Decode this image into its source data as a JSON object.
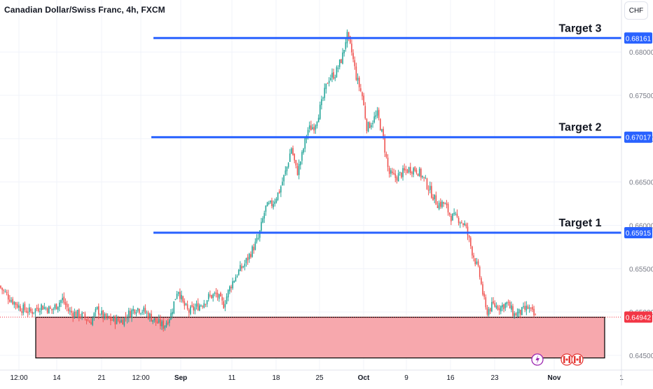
{
  "header": {
    "title": "Canadian Dollar/Swiss Franc, 4h, FXCM",
    "currency_button": "CHF"
  },
  "colors": {
    "up": "#26a69a",
    "down": "#ef5350",
    "level_line": "#2962ff",
    "zone_fill": "#f7a8ad",
    "zone_border": "#000000",
    "last_price_line": "#f23645",
    "grid": "#f0f3fa",
    "axis_text": "#787b86"
  },
  "chart_data": {
    "type": "candlestick",
    "title": "Canadian Dollar/Swiss Franc, 4h, FXCM",
    "x_tick_labels": [
      "12:00",
      "14",
      "21",
      "12:00",
      "Sep",
      "11",
      "18",
      "25",
      "Oct",
      "9",
      "16",
      "23",
      "Nov",
      "1"
    ],
    "y_tick_labels": [
      "0.68000",
      "0.67500",
      "0.67000",
      "0.66500",
      "0.66000",
      "0.65500",
      "0.65000",
      "0.64500"
    ],
    "ylim": [
      0.6433,
      0.686
    ],
    "price_levels": [
      {
        "label": "Target 3",
        "value": 0.68161
      },
      {
        "label": "Target 2",
        "value": 0.67017
      },
      {
        "label": "Target 1",
        "value": 0.65915
      }
    ],
    "support_zone": {
      "low": 0.6447,
      "high": 0.6494
    },
    "last_price": 0.64942,
    "marker_icons": [
      "lightning-icon",
      "canada-flag-icon",
      "canada-flag-icon"
    ],
    "path": [
      [
        0,
        0.653
      ],
      [
        15,
        0.6516
      ],
      [
        30,
        0.6505
      ],
      [
        45,
        0.65
      ],
      [
        60,
        0.6507
      ],
      [
        75,
        0.6502
      ],
      [
        90,
        0.6515
      ],
      [
        100,
        0.65
      ],
      [
        110,
        0.6498
      ],
      [
        120,
        0.6495
      ],
      [
        130,
        0.6488
      ],
      [
        140,
        0.6503
      ],
      [
        150,
        0.6493
      ],
      [
        160,
        0.6491
      ],
      [
        175,
        0.649
      ],
      [
        185,
        0.6498
      ],
      [
        195,
        0.6505
      ],
      [
        205,
        0.6502
      ],
      [
        215,
        0.6495
      ],
      [
        225,
        0.6488
      ],
      [
        235,
        0.6484
      ],
      [
        245,
        0.6497
      ],
      [
        255,
        0.6528
      ],
      [
        262,
        0.651
      ],
      [
        270,
        0.65
      ],
      [
        280,
        0.6505
      ],
      [
        290,
        0.651
      ],
      [
        300,
        0.6518
      ],
      [
        310,
        0.652
      ],
      [
        320,
        0.6508
      ],
      [
        330,
        0.653
      ],
      [
        340,
        0.6545
      ],
      [
        350,
        0.6555
      ],
      [
        360,
        0.657
      ],
      [
        370,
        0.6585
      ],
      [
        380,
        0.662
      ],
      [
        390,
        0.6625
      ],
      [
        400,
        0.664
      ],
      [
        410,
        0.6665
      ],
      [
        417,
        0.669
      ],
      [
        425,
        0.666
      ],
      [
        432,
        0.668
      ],
      [
        440,
        0.671
      ],
      [
        450,
        0.6715
      ],
      [
        460,
        0.674
      ],
      [
        470,
        0.677
      ],
      [
        480,
        0.6775
      ],
      [
        490,
        0.6795
      ],
      [
        496,
        0.682
      ],
      [
        503,
        0.68
      ],
      [
        510,
        0.677
      ],
      [
        518,
        0.675
      ],
      [
        525,
        0.6712
      ],
      [
        532,
        0.672
      ],
      [
        540,
        0.6728
      ],
      [
        548,
        0.67
      ],
      [
        556,
        0.666
      ],
      [
        565,
        0.6655
      ],
      [
        575,
        0.666
      ],
      [
        585,
        0.6665
      ],
      [
        595,
        0.6665
      ],
      [
        605,
        0.6655
      ],
      [
        615,
        0.664
      ],
      [
        625,
        0.6625
      ],
      [
        635,
        0.6625
      ],
      [
        645,
        0.661
      ],
      [
        655,
        0.6608
      ],
      [
        665,
        0.66
      ],
      [
        675,
        0.657
      ],
      [
        685,
        0.6545
      ],
      [
        695,
        0.65
      ],
      [
        705,
        0.6508
      ],
      [
        715,
        0.6506
      ],
      [
        725,
        0.651
      ],
      [
        735,
        0.6497
      ],
      [
        745,
        0.65
      ],
      [
        755,
        0.6505
      ],
      [
        765,
        0.6494
      ]
    ]
  }
}
